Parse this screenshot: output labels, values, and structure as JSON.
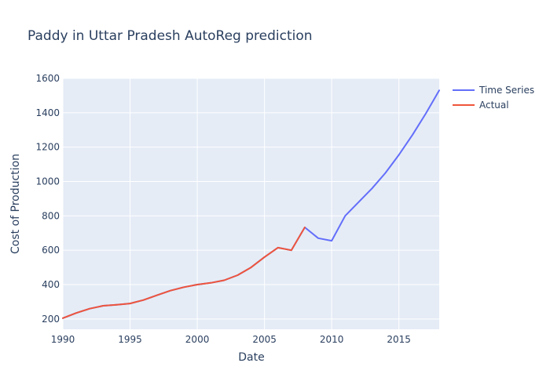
{
  "chart_data": {
    "type": "line",
    "title": "Paddy in Uttar Pradesh AutoReg prediction",
    "xlabel": "Date",
    "ylabel": "Cost of Production",
    "xlim": [
      1990,
      2018
    ],
    "ylim": [
      140,
      1600
    ],
    "x_ticks": [
      1990,
      1995,
      2000,
      2005,
      2010,
      2015
    ],
    "x_tick_labels": [
      "1990",
      "1995",
      "2000",
      "2005",
      "2010",
      "2015"
    ],
    "y_ticks": [
      200,
      400,
      600,
      800,
      1000,
      1200,
      1400,
      1600
    ],
    "y_tick_labels": [
      "200",
      "400",
      "600",
      "800",
      "1000",
      "1200",
      "1400",
      "1600"
    ],
    "grid": true,
    "legend_position": "top-right",
    "colors": {
      "plot_bg": "#e5ecf6",
      "grid": "#ffffff"
    },
    "series": [
      {
        "name": "Time Series",
        "color": "#636efa",
        "x": [
          1990,
          1991,
          1992,
          1993,
          1994,
          1995,
          1996,
          1997,
          1998,
          1999,
          2000,
          2001,
          2002,
          2003,
          2004,
          2005,
          2006,
          2007,
          2008,
          2009,
          2010,
          2011,
          2012,
          2013,
          2014,
          2015,
          2016,
          2017,
          2018
        ],
        "values": [
          205,
          235,
          260,
          277,
          283,
          290,
          310,
          338,
          365,
          385,
          400,
          410,
          425,
          455,
          500,
          560,
          615,
          600,
          733,
          670,
          655,
          800,
          880,
          960,
          1050,
          1155,
          1270,
          1395,
          1530
        ]
      },
      {
        "name": "Actual",
        "color": "#ef553b",
        "x": [
          1990,
          1991,
          1992,
          1993,
          1994,
          1995,
          1996,
          1997,
          1998,
          1999,
          2000,
          2001,
          2002,
          2003,
          2004,
          2005,
          2006,
          2007,
          2008
        ],
        "values": [
          205,
          235,
          260,
          277,
          283,
          290,
          310,
          338,
          365,
          385,
          400,
          410,
          425,
          455,
          500,
          560,
          615,
          600,
          733
        ]
      }
    ]
  }
}
